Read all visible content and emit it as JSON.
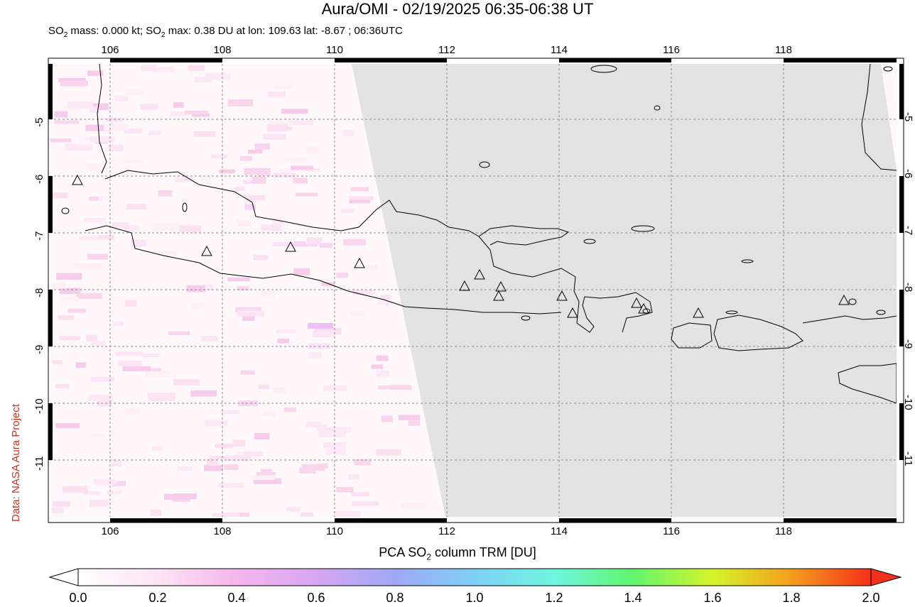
{
  "title": "Aura/OMI - 02/19/2025 06:35-06:38 UT",
  "subtitle": {
    "so2_a": "SO",
    "so2_b": "SO",
    "sub": "2",
    "part1": " mass: 0.000 kt; ",
    "part2": " max: 0.38 DU at lon: 109.63 lat: -8.67 ; 06:36UTC"
  },
  "credit": "Data: NASA Aura Project",
  "map": {
    "lon_labels": [
      "106",
      "108",
      "110",
      "112",
      "114",
      "116",
      "118"
    ],
    "lat_labels": [
      "-5",
      "-6",
      "-7",
      "-8",
      "-9",
      "-10",
      "-11"
    ],
    "grid": "on",
    "no_data_color": "#e3e3e3",
    "volcano_symbol": "triangle-icon"
  },
  "colorbar": {
    "title_a": "PCA SO",
    "title_sub": "2",
    "title_b": " column TRM [DU]",
    "ticks": [
      "0.0",
      "0.2",
      "0.4",
      "0.6",
      "0.8",
      "1.0",
      "1.2",
      "1.4",
      "1.6",
      "1.8",
      "2.0"
    ],
    "colors": [
      "#ffffff",
      "#fce4f3",
      "#f6b6ec",
      "#d7a6f2",
      "#9ea8f6",
      "#7fd0f6",
      "#6ef5e0",
      "#62f56e",
      "#d4f52a",
      "#f59d1d",
      "#f5301a"
    ]
  }
}
